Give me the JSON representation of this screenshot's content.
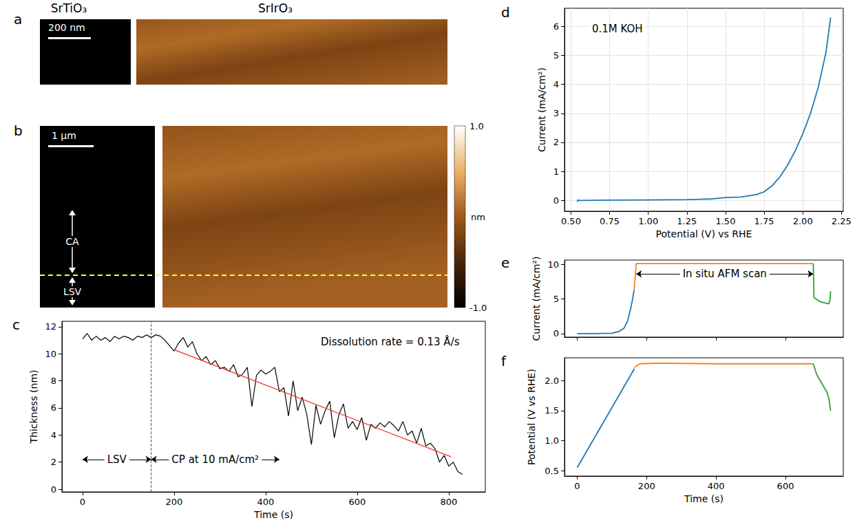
{
  "images": [
    {
      "panel_label": "a",
      "labels": {
        "left": "SrTiO₃",
        "right": "SrIrO₃"
      },
      "scale_bar": "200 nm"
    },
    {
      "panel_label": "b",
      "scale_bar": "1 μm",
      "annotations": [
        "CA",
        "LSV"
      ],
      "colorbar": {
        "range": [
          -1,
          1
        ],
        "ticks": [
          {
            "value": -1,
            "label": "-1.0"
          },
          {
            "value": 1,
            "label": "1.0"
          }
        ],
        "unit": "nm"
      }
    }
  ],
  "chart_data": [
    {
      "panel_label": "c",
      "type": "line",
      "xlabel": "Time (s)",
      "ylabel": "Thickness (nm)",
      "xlim": [
        -45,
        880
      ],
      "xticks": [
        0,
        200,
        400,
        600,
        800
      ],
      "ylim": [
        -0.2,
        12.4
      ],
      "yticks": [
        0,
        2,
        4,
        6,
        8,
        10,
        12
      ],
      "grid": false,
      "series": [
        {
          "color": "#000000",
          "x": [
            0,
            10,
            20,
            30,
            40,
            50,
            60,
            70,
            80,
            90,
            100,
            110,
            120,
            130,
            140,
            150,
            160,
            170,
            180,
            190,
            200,
            210,
            220,
            230,
            240,
            250,
            260,
            270,
            280,
            290,
            300,
            310,
            320,
            330,
            340,
            350,
            360,
            370,
            380,
            390,
            400,
            410,
            420,
            430,
            440,
            450,
            460,
            470,
            480,
            490,
            500,
            510,
            520,
            530,
            540,
            550,
            560,
            570,
            580,
            590,
            600,
            610,
            620,
            630,
            640,
            650,
            660,
            670,
            680,
            690,
            700,
            710,
            720,
            730,
            740,
            750,
            760,
            770,
            780,
            790,
            800,
            810,
            820,
            830
          ],
          "values": [
            11.1,
            11.5,
            11.0,
            11.3,
            11.0,
            11.2,
            10.9,
            11.3,
            11.1,
            11.3,
            11.2,
            11.0,
            11.3,
            11.2,
            11.4,
            11.2,
            11.4,
            11.3,
            11.0,
            10.6,
            10.2,
            10.8,
            11.2,
            10.5,
            10.9,
            10.0,
            9.5,
            9.8,
            9.2,
            9.5,
            8.9,
            9.0,
            8.7,
            9.2,
            8.3,
            8.5,
            9.0,
            6.1,
            8.4,
            8.8,
            8.5,
            8.7,
            9.0,
            7.2,
            7.5,
            5.4,
            8.0,
            5.8,
            6.8,
            5.5,
            3.3,
            6.2,
            4.8,
            5.8,
            6.5,
            3.8,
            5.5,
            6.3,
            4.5,
            5.0,
            4.4,
            5.3,
            3.6,
            4.8,
            4.5,
            4.9,
            4.6,
            5.0,
            4.7,
            4.3,
            5.0,
            4.0,
            4.3,
            3.4,
            4.5,
            3.2,
            3.4,
            3.0,
            2.0,
            2.5,
            1.7,
            2.0,
            1.3,
            1.1
          ]
        },
        {
          "color": "#e8382b",
          "x": [
            200,
            805
          ],
          "values": [
            10.3,
            2.4
          ]
        }
      ],
      "vlines": [
        150
      ],
      "arrows": [
        {
          "x": [
            0,
            150
          ],
          "y": 2.2
        },
        {
          "x": [
            150,
            430
          ],
          "y": 2.2
        }
      ],
      "texts": [
        {
          "text": "LSV",
          "x": 75,
          "y": 2.2
        },
        {
          "text": "CP at 10 mA/cm²",
          "x": 290,
          "y": 2.2
        },
        {
          "text": "Dissolution rate = 0.13 Å/s",
          "x": 672,
          "y": 10.9
        }
      ]
    },
    {
      "panel_label": "d",
      "type": "line",
      "xlabel": "Potential (V) vs RHE",
      "ylabel": "Current (mA/cm²)",
      "xlim": [
        0.458,
        2.262
      ],
      "xticks": [
        {
          "value": 0.5,
          "label": "0.50"
        },
        0.75,
        {
          "value": 1,
          "label": "1.00"
        },
        1.25,
        {
          "value": 1.5,
          "label": "1.50"
        },
        1.75,
        {
          "value": 2,
          "label": "2.00"
        },
        2.25
      ],
      "ylim": [
        -0.37,
        6.62
      ],
      "yticks": [
        0,
        1,
        2,
        3,
        4,
        5,
        6
      ],
      "grid": true,
      "series": [
        {
          "color": "#1f77b4",
          "x": [
            0.54,
            0.545,
            0.55,
            0.75,
            1.0,
            1.25,
            1.4,
            1.5,
            1.6,
            1.7,
            1.75,
            1.8,
            1.85,
            1.9,
            1.95,
            2.0,
            2.05,
            2.1,
            2.15,
            2.18
          ],
          "values": [
            -0.05,
            0.02,
            0.0,
            0.01,
            0.02,
            0.03,
            0.05,
            0.1,
            0.12,
            0.2,
            0.3,
            0.5,
            0.8,
            1.2,
            1.7,
            2.3,
            3.0,
            3.9,
            5.1,
            6.3
          ]
        }
      ],
      "texts": [
        {
          "text": "0.1M KOH",
          "x": 0.8,
          "y": 5.9
        }
      ]
    },
    {
      "panel_label": "e",
      "type": "line",
      "ylabel": "Current (mA/cm²)",
      "xlim": [
        -36.5,
        766.5
      ],
      "xticks": [
        0,
        200,
        400,
        600
      ],
      "ylim": [
        -0.5,
        10.6
      ],
      "yticks": [
        0,
        5,
        10
      ],
      "grid": false,
      "tick_labels": "y",
      "series": [
        {
          "color": "#1f77b4",
          "x": [
            0,
            50,
            100,
            120,
            135,
            145,
            150,
            155,
            160,
            164
          ],
          "values": [
            0,
            0,
            0.05,
            0.3,
            0.8,
            1.8,
            2.8,
            3.8,
            5.1,
            6.3
          ]
        },
        {
          "color": "#ff7f0e",
          "x": [
            164,
            170,
            400,
            680
          ],
          "values": [
            6.3,
            10.1,
            10.1,
            10.1
          ]
        },
        {
          "color": "#2ca02c",
          "x": [
            680,
            682,
            700,
            725,
            728,
            730
          ],
          "values": [
            10.1,
            5.2,
            4.6,
            4.3,
            4.8,
            6.1
          ]
        }
      ],
      "arrows": [
        {
          "x": [
            170,
            680
          ],
          "y": 8.6
        }
      ],
      "texts": [
        {
          "text": "In situ AFM scan",
          "x": 425,
          "y": 8.6
        }
      ]
    },
    {
      "panel_label": "f",
      "type": "line",
      "xlabel": "Time (s)",
      "ylabel": "Potential (V vs RHE)",
      "xlim": [
        -36.5,
        766.5
      ],
      "xticks": [
        0,
        200,
        400,
        600
      ],
      "ylim": [
        0.41,
        2.38
      ],
      "yticks": [
        0.5,
        {
          "value": 1,
          "label": "1.0"
        },
        1.5,
        {
          "value": 2,
          "label": "2.0"
        }
      ],
      "grid": false,
      "series": [
        {
          "color": "#1f77b4",
          "x": [
            0,
            165
          ],
          "values": [
            0.55,
            2.2
          ]
        },
        {
          "color": "#ff7f0e",
          "x": [
            165,
            180,
            230,
            400,
            680
          ],
          "values": [
            2.22,
            2.28,
            2.29,
            2.28,
            2.28
          ]
        },
        {
          "color": "#2ca02c",
          "x": [
            680,
            690,
            700,
            720,
            725,
            730
          ],
          "values": [
            2.28,
            2.1,
            2.0,
            1.8,
            1.7,
            1.5
          ]
        }
      ]
    }
  ]
}
